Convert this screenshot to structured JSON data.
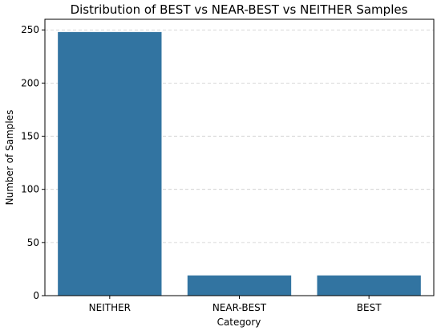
{
  "chart_data": {
    "type": "bar",
    "title": "Distribution of BEST vs NEAR-BEST vs NEITHER Samples",
    "xlabel": "Category",
    "ylabel": "Number of Samples",
    "categories": [
      "NEITHER",
      "NEAR-BEST",
      "BEST"
    ],
    "values": [
      248,
      19,
      19
    ],
    "ylim": [
      0,
      260
    ],
    "yticks": [
      0,
      50,
      100,
      150,
      200,
      250
    ],
    "grid": true,
    "bar_color": "#3274a1"
  }
}
